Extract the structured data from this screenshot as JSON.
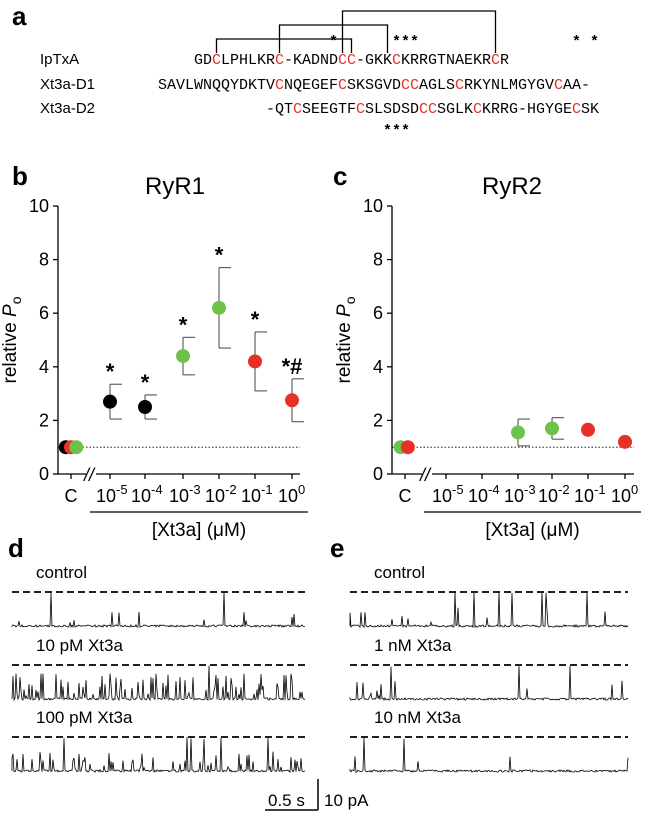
{
  "panels": {
    "a": "a",
    "b": "b",
    "c": "c",
    "d": "d",
    "e": "e"
  },
  "colors": {
    "red": "#e63028",
    "green": "#6cc24a",
    "black": "#000000"
  },
  "alignment": {
    "rows": [
      {
        "name": "IpTxA",
        "seq": "    GDCLPHLKRC-KADNDCC-GKKCKRRGTNAEKRCR"
      },
      {
        "name": "Xt3a-D1",
        "seq": "SAVLWNQQYDKTVCNQEGEFCSKSGVDCCAGLSCRKYNLMGYGVCAA-"
      },
      {
        "name": "Xt3a-D2",
        "seq": "            -QTCSEEGTFCSLSDSDCCSGLKCKRRG-HGYGECSK"
      }
    ],
    "red_letter": "C",
    "top_marks": [
      {
        "col": 19,
        "text": "*"
      },
      {
        "col": 26,
        "text": "***"
      },
      {
        "col": 46,
        "text": "*"
      },
      {
        "col": 48,
        "text": "*"
      }
    ],
    "bottom_marks": [
      {
        "col": 25,
        "text": "***"
      }
    ],
    "bridges": [
      {
        "from": 6,
        "to": 21,
        "level": 1
      },
      {
        "from": 13,
        "to": 25,
        "level": 2
      },
      {
        "from": 20,
        "to": 37,
        "level": 3
      }
    ]
  },
  "chart_data": [
    {
      "type": "scatter",
      "title": "RyR1",
      "ylabel_pre": "relative ",
      "ylabel_italic": "P",
      "ylabel_sub": "o",
      "xlabel": "[Xt3a] (μM)",
      "ylim": [
        0,
        10
      ],
      "yticks": [
        "0",
        "2",
        "4",
        "6",
        "8",
        "10"
      ],
      "categories": [
        "C",
        "10-5",
        "10-4",
        "10-3",
        "10-2",
        "10-1",
        "100"
      ],
      "tick_bases": [
        "10",
        "10",
        "10",
        "10",
        "10",
        "10"
      ],
      "tick_exps": [
        "-5",
        "-4",
        "-3",
        "-2",
        "-1",
        "0"
      ],
      "axis_break": "//",
      "baseline": 1,
      "control_points": [
        {
          "offset": -0.15,
          "value": 1.0,
          "color": "#000000"
        },
        {
          "offset": 0.0,
          "value": 1.0,
          "color": "#e63028"
        },
        {
          "offset": 0.15,
          "value": 1.0,
          "color": "#6cc24a"
        }
      ],
      "points": [
        {
          "x": "10-5",
          "value": 2.7,
          "error": 0.65,
          "color": "#000000",
          "label": "*"
        },
        {
          "x": "10-4",
          "value": 2.5,
          "error": 0.45,
          "color": "#000000",
          "label": "*"
        },
        {
          "x": "10-3",
          "value": 4.4,
          "error": 0.7,
          "color": "#6cc24a",
          "label": "*"
        },
        {
          "x": "10-2",
          "value": 6.2,
          "error": 1.5,
          "color": "#6cc24a",
          "label": "*"
        },
        {
          "x": "10-1",
          "value": 4.2,
          "error": 1.1,
          "color": "#e63028",
          "label": "*"
        },
        {
          "x": "100",
          "value": 2.75,
          "error": 0.8,
          "color": "#e63028",
          "label": "*#"
        }
      ]
    },
    {
      "type": "scatter",
      "title": "RyR2",
      "ylabel_pre": "relative ",
      "ylabel_italic": "P",
      "ylabel_sub": "o",
      "xlabel": "[Xt3a] (μM)",
      "ylim": [
        0,
        10
      ],
      "yticks": [
        "0",
        "2",
        "4",
        "6",
        "8",
        "10"
      ],
      "categories": [
        "C",
        "10-5",
        "10-4",
        "10-3",
        "10-2",
        "10-1",
        "100"
      ],
      "tick_bases": [
        "10",
        "10",
        "10",
        "10",
        "10",
        "10"
      ],
      "tick_exps": [
        "-5",
        "-4",
        "-3",
        "-2",
        "-1",
        "0"
      ],
      "axis_break": "//",
      "baseline": 1,
      "control_points": [
        {
          "offset": -0.12,
          "value": 1.0,
          "color": "#6cc24a"
        },
        {
          "offset": 0.08,
          "value": 1.0,
          "color": "#e63028"
        }
      ],
      "points": [
        {
          "x": "10-3",
          "value": 1.55,
          "error": 0.5,
          "color": "#6cc24a",
          "label": ""
        },
        {
          "x": "10-2",
          "value": 1.7,
          "error": 0.4,
          "color": "#6cc24a",
          "label": ""
        },
        {
          "x": "10-1",
          "value": 1.65,
          "error": 0.0,
          "color": "#e63028",
          "label": ""
        },
        {
          "x": "100",
          "value": 1.2,
          "error": 0.0,
          "color": "#e63028",
          "label": ""
        }
      ]
    }
  ],
  "traces": {
    "d": [
      {
        "label": "control",
        "density": 0.05,
        "amp": 0.45
      },
      {
        "label": "10 pM Xt3a",
        "density": 0.32,
        "amp": 0.75
      },
      {
        "label": "100 pM Xt3a",
        "density": 0.22,
        "amp": 0.6
      }
    ],
    "e": [
      {
        "label": "control",
        "density": 0.04,
        "amp": 0.55
      },
      {
        "label": "1 nM Xt3a",
        "density": 0.035,
        "amp": 0.6
      },
      {
        "label": "10 nM Xt3a",
        "density": 0.035,
        "amp": 0.6
      }
    ]
  },
  "scalebar": {
    "time": "0.5 s",
    "current": "10 pA"
  }
}
